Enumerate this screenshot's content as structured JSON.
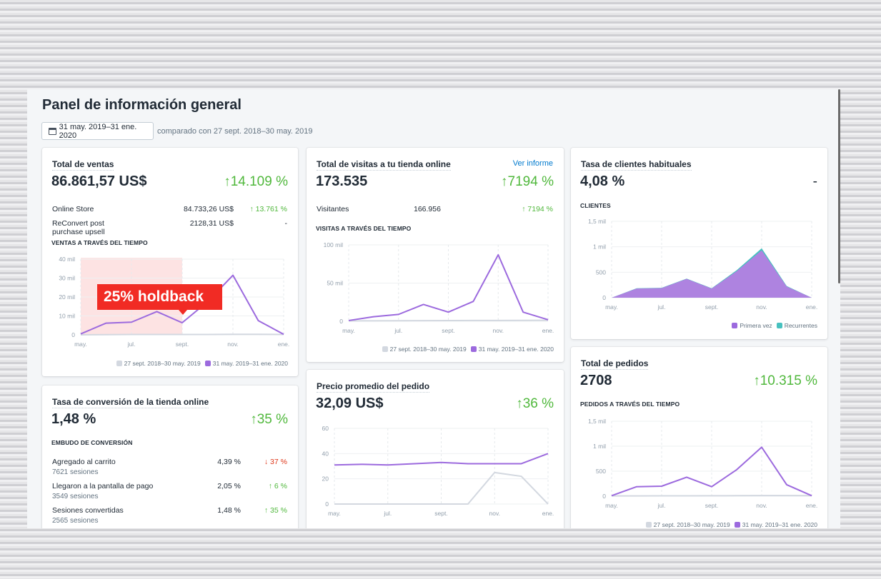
{
  "page": {
    "title": "Panel de información general",
    "date_range": "31 may. 2019–31 ene. 2020",
    "compare": "comparado con 27 sept. 2018–30 may. 2019",
    "calendar_icon": "calendar-icon"
  },
  "colors": {
    "current": "#9c6ade",
    "previous": "#d3d8e0",
    "area_first": "#ae83e0",
    "area_returning": "#47c1bf",
    "up": "#50b83c",
    "down": "#de3618",
    "link": "#007ace",
    "holdback": "#f12b24"
  },
  "x_labels": [
    "may.",
    "jul.",
    "sept.",
    "nov.",
    "ene."
  ],
  "legend": {
    "previous": "27 sept. 2018–30 may. 2019",
    "current": "31 may. 2019–31 ene. 2020"
  },
  "sales": {
    "title": "Total de ventas",
    "value": "86.861,57 US$",
    "change": "↑14.109 %",
    "rows": [
      {
        "label": "Online Store",
        "value": "84.733,26 US$",
        "change": "↑ 13.761 %",
        "dir": "up"
      },
      {
        "label": "ReConvert post purchase upsell",
        "value": "2128,31 US$",
        "change": "-",
        "dir": ""
      }
    ],
    "section": "VENTAS A TRAVÉS DEL TIEMPO",
    "holdback": "25% holdback",
    "chart": {
      "type": "line",
      "y_ticks": [
        "0",
        "10 mil",
        "20 mil",
        "30 mil",
        "40 mil"
      ],
      "ylim": [
        0,
        40000
      ],
      "current": [
        500,
        6200,
        6700,
        12300,
        6400,
        17500,
        31500,
        7500,
        300
      ],
      "previous": [
        0,
        100,
        200,
        200,
        200,
        200,
        300,
        300,
        200
      ]
    }
  },
  "visits": {
    "title": "Total de visitas a tu tienda online",
    "link": "Ver informe",
    "value": "173.535",
    "change": "↑7194 %",
    "rows": [
      {
        "label": "Visitantes",
        "value": "166.956",
        "change": "↑ 7194 %",
        "dir": "up"
      }
    ],
    "section": "VISITAS A TRAVÉS DEL TIEMPO",
    "chart": {
      "type": "line",
      "y_ticks": [
        "0",
        "50 mil",
        "100 mil"
      ],
      "ylim": [
        0,
        100000
      ],
      "current": [
        1000,
        6000,
        9000,
        22000,
        12000,
        26000,
        87000,
        12000,
        2000
      ],
      "previous": [
        500,
        600,
        700,
        800,
        900,
        1000,
        1100,
        1200,
        1300
      ]
    }
  },
  "conversion": {
    "title": "Tasa de conversión de la tienda online",
    "value": "1,48 %",
    "change": "↑35 %",
    "section": "EMBUDO DE CONVERSIÓN",
    "rows": [
      {
        "label": "Agregado al carrito",
        "sub": "7621 sesiones",
        "value": "4,39 %",
        "change": "↓ 37 %",
        "dir": "down"
      },
      {
        "label": "Llegaron a la pantalla de pago",
        "sub": "3549 sesiones",
        "value": "2,05 %",
        "change": "↑ 6 %",
        "dir": "up"
      },
      {
        "label": "Sesiones convertidas",
        "sub": "2565 sesiones",
        "value": "1,48 %",
        "change": "↑ 35 %",
        "dir": "up"
      }
    ]
  },
  "aov": {
    "title": "Precio promedio del pedido",
    "value": "32,09 US$",
    "change": "↑36 %",
    "chart": {
      "type": "line",
      "y_ticks": [
        "0",
        "20",
        "40",
        "60"
      ],
      "ylim": [
        0,
        60
      ],
      "current": [
        31,
        31.5,
        31,
        32,
        33,
        32,
        32,
        32,
        40
      ],
      "previous": [
        0,
        0,
        0,
        0,
        0,
        0,
        25,
        22,
        0
      ]
    }
  },
  "returning": {
    "title": "Tasa de clientes habituales",
    "value": "4,08 %",
    "change": "-",
    "section": "CLIENTES",
    "legend": {
      "first": "Primera vez",
      "returning": "Recurrentes"
    },
    "chart": {
      "type": "area",
      "y_ticks": [
        "0",
        "500",
        "1 mil",
        "1,5 mil"
      ],
      "ylim": [
        0,
        1500
      ],
      "first_time": [
        0,
        180,
        190,
        370,
        180,
        520,
        930,
        220,
        0
      ],
      "returning": [
        0,
        5,
        5,
        5,
        5,
        20,
        40,
        10,
        0
      ]
    }
  },
  "orders": {
    "title": "Total de pedidos",
    "value": "2708",
    "change": "↑10.315 %",
    "section": "PEDIDOS A TRAVÉS DEL TIEMPO",
    "chart": {
      "type": "line",
      "y_ticks": [
        "0",
        "500",
        "1 mil",
        "1,5 mil"
      ],
      "ylim": [
        0,
        1500
      ],
      "current": [
        10,
        190,
        200,
        380,
        190,
        530,
        980,
        230,
        10
      ],
      "previous": [
        5,
        6,
        7,
        8,
        9,
        10,
        12,
        12,
        10
      ]
    }
  }
}
